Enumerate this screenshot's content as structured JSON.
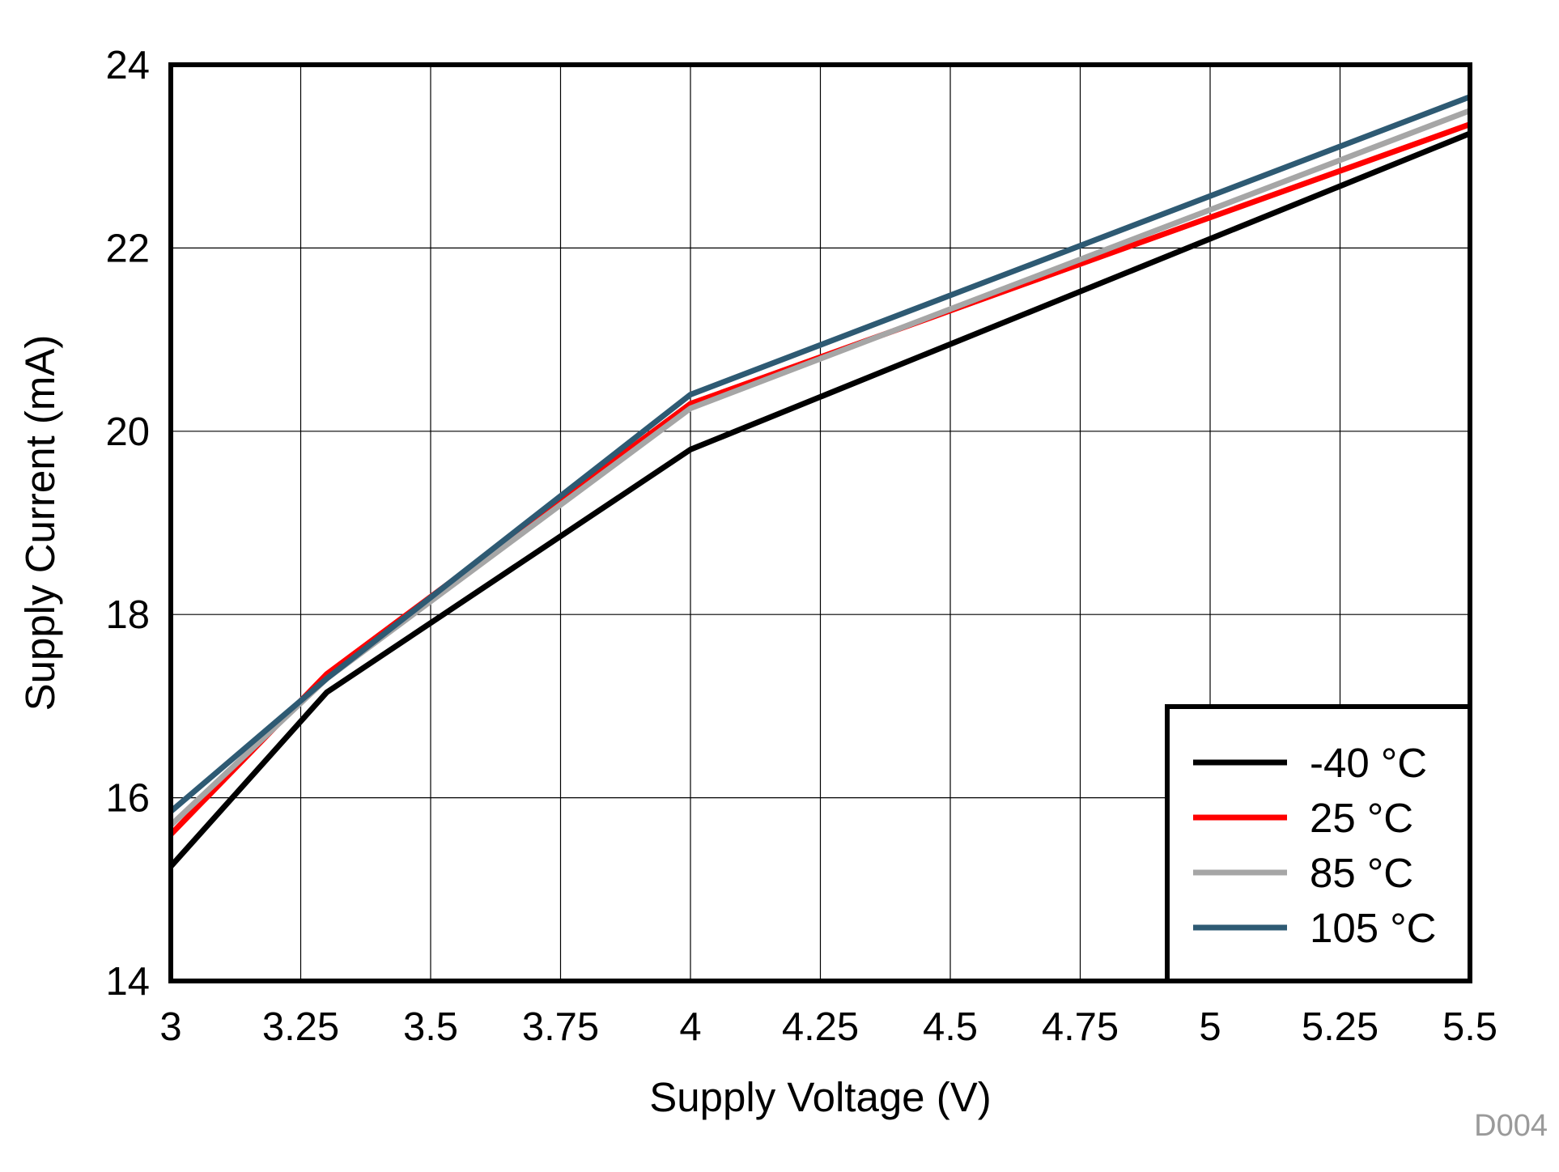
{
  "chart_data": {
    "type": "line",
    "title": "",
    "xlabel": "Supply Voltage (V)",
    "ylabel": "Supply Current (mA)",
    "xlim": [
      3,
      5.5
    ],
    "ylim": [
      14,
      24
    ],
    "grid": true,
    "x_ticks": [
      "3",
      "3.25",
      "3.5",
      "3.75",
      "4",
      "4.25",
      "4.5",
      "4.75",
      "5",
      "5.25",
      "5.5"
    ],
    "y_ticks": [
      "14",
      "16",
      "18",
      "20",
      "22",
      "24"
    ],
    "x_tick_values": [
      3,
      3.25,
      3.5,
      3.75,
      4,
      4.25,
      4.5,
      4.75,
      5,
      5.25,
      5.5
    ],
    "y_tick_values": [
      14,
      16,
      18,
      20,
      22,
      24
    ],
    "legend_position": "bottom-right",
    "figure_id": "D004",
    "x": [
      3,
      3.3,
      4,
      5.5
    ],
    "series": [
      {
        "name": "-40 °C",
        "color": "#000000",
        "values": [
          15.25,
          17.15,
          19.8,
          23.25
        ]
      },
      {
        "name": "25 °C",
        "color": "#ff0000",
        "values": [
          15.6,
          17.35,
          20.3,
          23.35
        ]
      },
      {
        "name": "85 °C",
        "color": "#a6a6a6",
        "values": [
          15.7,
          17.3,
          20.25,
          23.5
        ]
      },
      {
        "name": "105 °C",
        "color": "#2e5a73",
        "values": [
          15.85,
          17.3,
          20.4,
          23.65
        ]
      }
    ]
  }
}
